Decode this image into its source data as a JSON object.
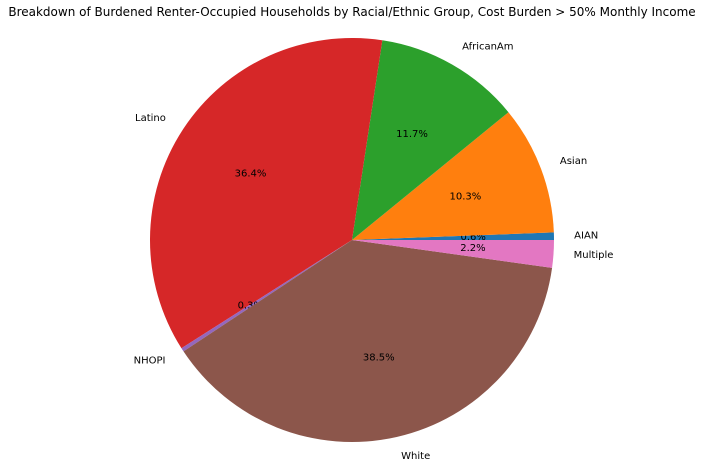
{
  "chart_data": {
    "type": "pie",
    "title": "Breakdown of Burdened Renter-Occupied Households by Racial/Ethnic Group, Cost Burden > 50% Monthly Income",
    "start_angle_deg": 0,
    "direction": "counterclockwise",
    "labels": [
      "AIAN",
      "Asian",
      "AfricanAm",
      "Latino",
      "NHOPI",
      "White",
      "Multiple"
    ],
    "values": [
      0.6,
      10.3,
      11.7,
      36.4,
      0.3,
      38.5,
      2.2
    ],
    "percent_labels": [
      "0.6%",
      "10.3%",
      "11.7%",
      "36.4%",
      "0.3%",
      "38.5%",
      "2.2%"
    ],
    "colors": [
      "#1f77b4",
      "#ff7f0e",
      "#2ca02c",
      "#d62728",
      "#9467bd",
      "#8c564b",
      "#e377c2"
    ]
  }
}
